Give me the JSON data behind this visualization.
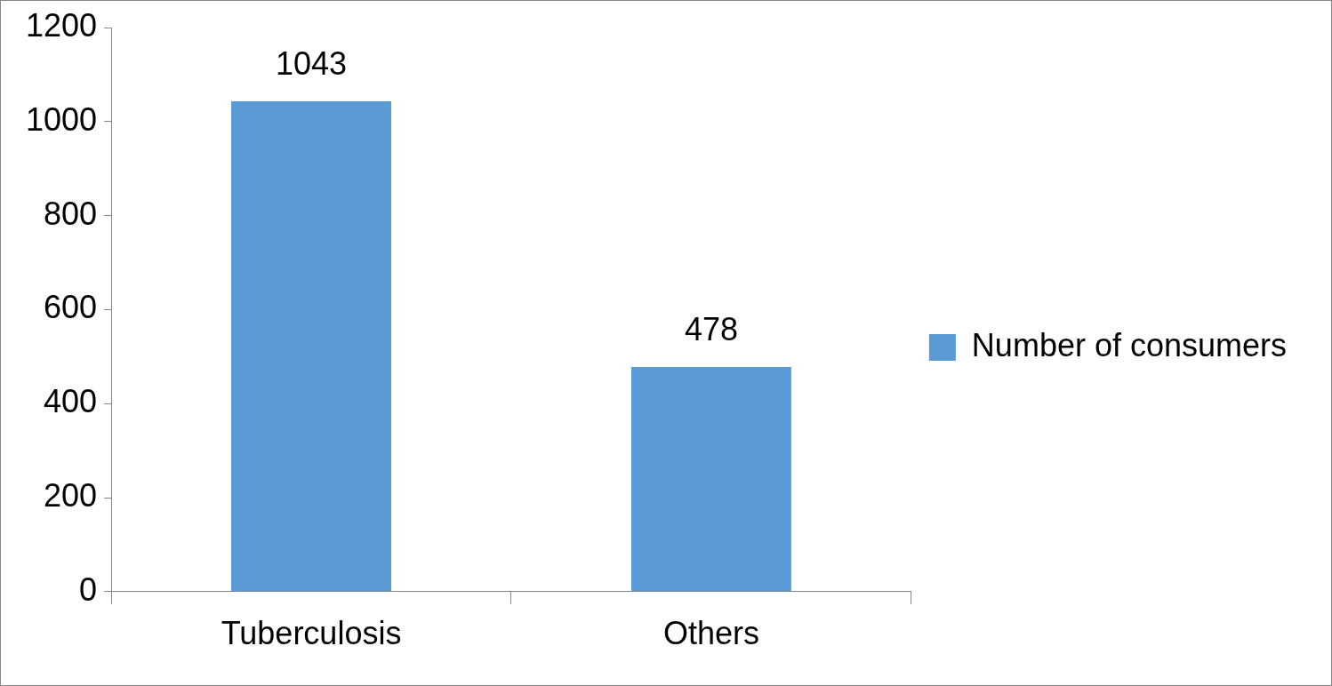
{
  "chart_data": {
    "type": "bar",
    "categories": [
      "Tuberculosis",
      "Others"
    ],
    "series": [
      {
        "name": "Number of consumers",
        "color": "#5b9bd5",
        "values": [
          1043,
          478
        ]
      }
    ],
    "ylim": [
      0,
      1200
    ],
    "yticks": [
      0,
      200,
      400,
      600,
      800,
      1000,
      1200
    ],
    "data_labels": true,
    "legend": "right",
    "grid": false
  }
}
